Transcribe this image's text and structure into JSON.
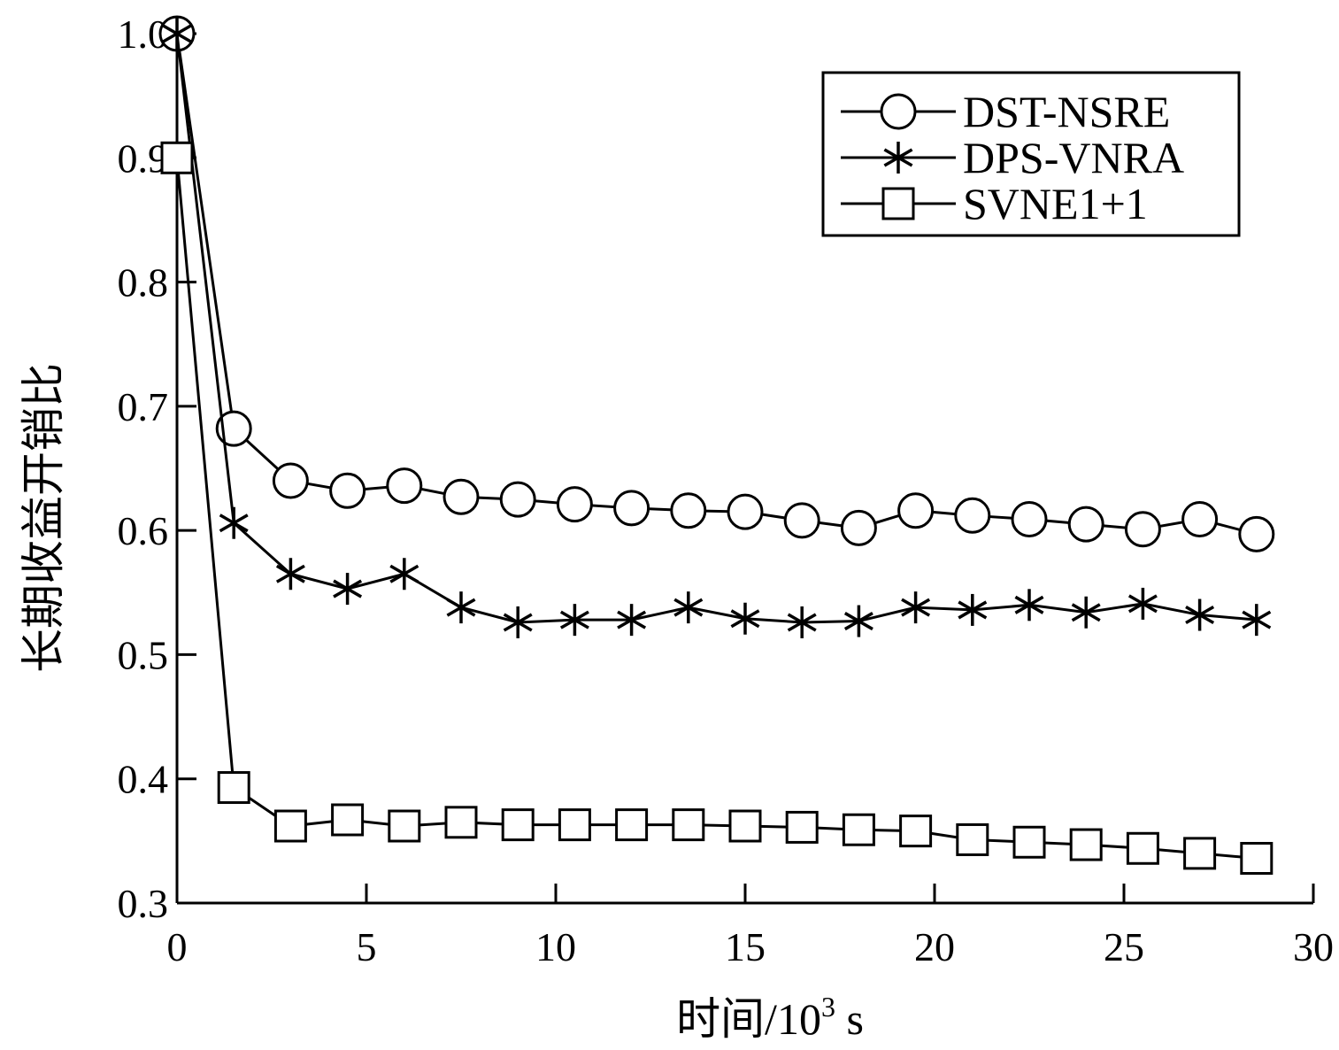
{
  "chart_data": {
    "type": "line",
    "xlabel": "时间/10",
    "xlabel_sup": "3",
    "xlabel_unit": " s",
    "ylabel": "长期收益开销比",
    "xlim": [
      0,
      30
    ],
    "ylim": [
      0.3,
      1.0
    ],
    "xticks": [
      "0",
      "5",
      "10",
      "15",
      "20",
      "25",
      "30"
    ],
    "yticks": [
      "0.3",
      "0.4",
      "0.5",
      "0.6",
      "0.7",
      "0.8",
      "0.9",
      "1.0"
    ],
    "grid": false,
    "legend_position": "top-right",
    "x": [
      0,
      1.5,
      3,
      4.5,
      6,
      7.5,
      9,
      10.5,
      12,
      13.5,
      15,
      16.5,
      18,
      19.5,
      21,
      22.5,
      24,
      25.5,
      27,
      28.5
    ],
    "series": [
      {
        "name": "DST-NSRE",
        "marker": "circle",
        "values": [
          1.0,
          0.682,
          0.64,
          0.632,
          0.636,
          0.627,
          0.625,
          0.621,
          0.618,
          0.616,
          0.615,
          0.608,
          0.602,
          0.616,
          0.612,
          0.609,
          0.605,
          0.601,
          0.609,
          0.597
        ]
      },
      {
        "name": "DPS-VNRA",
        "marker": "star",
        "values": [
          1.0,
          0.606,
          0.565,
          0.553,
          0.565,
          0.538,
          0.526,
          0.528,
          0.528,
          0.538,
          0.529,
          0.526,
          0.527,
          0.538,
          0.536,
          0.54,
          0.534,
          0.541,
          0.532,
          0.528
        ]
      },
      {
        "name": "SVNE1+1",
        "marker": "square",
        "values": [
          0.9,
          0.393,
          0.362,
          0.367,
          0.362,
          0.365,
          0.363,
          0.363,
          0.363,
          0.363,
          0.362,
          0.361,
          0.359,
          0.358,
          0.351,
          0.349,
          0.347,
          0.344,
          0.34,
          0.336
        ]
      }
    ]
  }
}
